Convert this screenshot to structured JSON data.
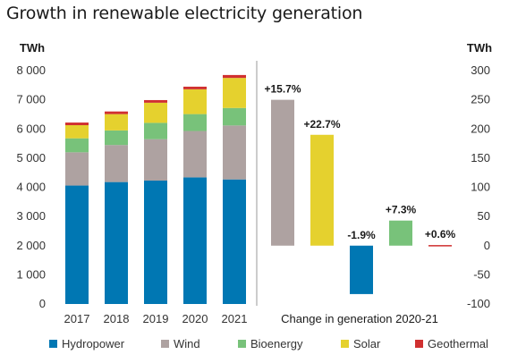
{
  "title": "Growth in renewable electricity generation",
  "colors": {
    "Hydropower": "#0077b3",
    "Wind": "#aea2a1",
    "Bioenergy": "#78c27a",
    "Solar": "#e5d12e",
    "Geothermal": "#d03030"
  },
  "chart_data": [
    {
      "type": "bar",
      "stacked": true,
      "unit": "TWh",
      "categories": [
        "2017",
        "2018",
        "2019",
        "2020",
        "2021"
      ],
      "series": [
        {
          "name": "Hydropower",
          "values": [
            4060,
            4180,
            4230,
            4340,
            4270
          ]
        },
        {
          "name": "Wind",
          "values": [
            1140,
            1270,
            1420,
            1590,
            1850
          ]
        },
        {
          "name": "Bioenergy",
          "values": [
            480,
            500,
            560,
            580,
            600
          ]
        },
        {
          "name": "Solar",
          "values": [
            450,
            560,
            690,
            850,
            1030
          ]
        },
        {
          "name": "Geothermal",
          "values": [
            90,
            90,
            90,
            90,
            100
          ]
        }
      ],
      "ylim": [
        0,
        8000
      ],
      "yticks": [
        "0",
        "1 000",
        "2 000",
        "3 000",
        "4 000",
        "5 000",
        "6 000",
        "7 000",
        "8 000"
      ],
      "ytick_values": [
        0,
        1000,
        2000,
        3000,
        4000,
        5000,
        6000,
        7000,
        8000
      ],
      "grid": false
    },
    {
      "type": "bar",
      "unit": "TWh",
      "xlabel": "Change in generation 2020-21",
      "categories": [
        "Wind",
        "Solar",
        "Hydropower",
        "Bioenergy",
        "Geothermal"
      ],
      "values": [
        250,
        190,
        -83,
        43,
        1
      ],
      "data_labels": [
        "+15.7%",
        "+22.7%",
        "-1.9%",
        "+7.3%",
        "+0.6%"
      ],
      "ylim": [
        -100,
        300
      ],
      "yticks": [
        "-100",
        "-50",
        "0",
        "50",
        "100",
        "150",
        "200",
        "250",
        "300"
      ],
      "ytick_values": [
        -100,
        -50,
        0,
        50,
        100,
        150,
        200,
        250,
        300
      ],
      "grid": false
    }
  ],
  "legend": [
    "Hydropower",
    "Wind",
    "Bioenergy",
    "Solar",
    "Geothermal"
  ]
}
